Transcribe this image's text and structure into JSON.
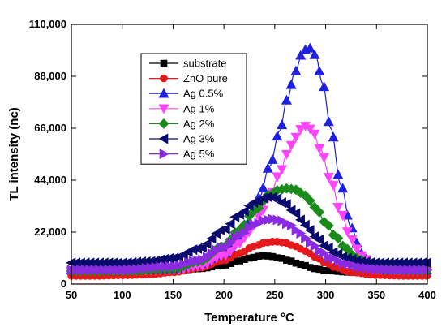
{
  "chart_data": {
    "type": "scatter",
    "xlabel": "Temperature °C",
    "ylabel": "TL intensity (nc)",
    "xlim": [
      50,
      400
    ],
    "ylim": [
      0,
      110000
    ],
    "xticks": [
      50,
      100,
      150,
      200,
      250,
      300,
      350,
      400
    ],
    "xtick_labels": [
      "50",
      "100",
      "150",
      "200",
      "250",
      "300",
      "350",
      "400"
    ],
    "yticks": [
      0,
      22000,
      44000,
      66000,
      88000,
      110000
    ],
    "ytick_labels": [
      "0",
      "22,000",
      "44,000",
      "66,000",
      "88,000",
      "110,000"
    ],
    "grid": false,
    "legend_position": "top-left",
    "series": [
      {
        "name": "substrate",
        "color": "#000000",
        "marker": "square",
        "x": [
          50,
          75,
          100,
          125,
          150,
          175,
          200,
          215,
          225,
          235,
          240,
          245,
          255,
          265,
          275,
          290,
          300,
          325,
          350,
          375,
          400
        ],
        "y": [
          4500,
          4600,
          4700,
          5000,
          5500,
          6500,
          8000,
          9800,
          11000,
          11800,
          12000,
          11800,
          11000,
          9800,
          8300,
          6500,
          5700,
          5000,
          4800,
          4700,
          4700
        ]
      },
      {
        "name": "ZnO pure",
        "color": "#e31a1c",
        "marker": "circle",
        "x": [
          50,
          75,
          100,
          125,
          150,
          175,
          200,
          215,
          230,
          240,
          250,
          260,
          270,
          280,
          290,
          300,
          310,
          325,
          350,
          375,
          400
        ],
        "y": [
          3500,
          3500,
          3700,
          4000,
          5000,
          6800,
          10000,
          13000,
          16000,
          17500,
          18000,
          17500,
          16000,
          14000,
          11500,
          9000,
          7000,
          5000,
          3800,
          3500,
          3500
        ]
      },
      {
        "name": "Ag 0.5%",
        "color": "#1f1fe0",
        "marker": "triangle-up",
        "x": [
          50,
          100,
          150,
          175,
          200,
          215,
          225,
          235,
          245,
          255,
          262,
          270,
          278,
          284,
          290,
          297,
          305,
          315,
          325,
          335,
          345,
          360,
          375,
          400
        ],
        "y": [
          6000,
          6000,
          6500,
          8500,
          13000,
          20000,
          27000,
          37000,
          50000,
          65000,
          78000,
          90000,
          99000,
          100000,
          97000,
          85000,
          66000,
          42000,
          24000,
          13000,
          8000,
          6000,
          6000,
          6000
        ]
      },
      {
        "name": "Ag 1%",
        "color": "#ff44ff",
        "marker": "triangle-down",
        "x": [
          50,
          100,
          150,
          175,
          200,
          215,
          225,
          235,
          245,
          255,
          262,
          270,
          275,
          281,
          287,
          295,
          305,
          315,
          325,
          335,
          345,
          360,
          375,
          400
        ],
        "y": [
          5500,
          5500,
          6000,
          7500,
          12000,
          17000,
          22000,
          29000,
          37000,
          47000,
          55000,
          62000,
          65500,
          67000,
          65000,
          57000,
          44000,
          30000,
          19000,
          12000,
          8500,
          6500,
          5800,
          5500
        ]
      },
      {
        "name": "Ag  2%",
        "color": "#1a8a1a",
        "marker": "diamond",
        "x": [
          50,
          100,
          150,
          175,
          200,
          215,
          230,
          245,
          255,
          262,
          270,
          280,
          290,
          300,
          310,
          320,
          330,
          345,
          360,
          375,
          400
        ],
        "y": [
          5500,
          5500,
          6500,
          9500,
          16000,
          23000,
          31000,
          38000,
          40000,
          40500,
          40000,
          37500,
          32500,
          26000,
          20000,
          15000,
          11000,
          8000,
          6500,
          6000,
          5800
        ]
      },
      {
        "name": "Ag  3%",
        "color": "#0a0a6e",
        "marker": "triangle-left",
        "x": [
          50,
          100,
          125,
          150,
          175,
          200,
          215,
          230,
          240,
          245,
          250,
          260,
          270,
          280,
          290,
          300,
          310,
          320,
          335,
          350,
          375,
          400
        ],
        "y": [
          9000,
          9000,
          9500,
          11000,
          15000,
          23000,
          29500,
          34500,
          36500,
          37000,
          36500,
          34000,
          30000,
          25000,
          20000,
          16000,
          13000,
          11000,
          9500,
          9000,
          9000,
          9000
        ]
      },
      {
        "name": "Ag  5%",
        "color": "#8a2be2",
        "marker": "triangle-right",
        "x": [
          50,
          100,
          150,
          175,
          200,
          215,
          230,
          240,
          248,
          255,
          265,
          275,
          285,
          295,
          305,
          320,
          335,
          350,
          375,
          400
        ],
        "y": [
          6000,
          6000,
          7500,
          10000,
          15500,
          20500,
          25000,
          27000,
          27500,
          27000,
          25000,
          21500,
          17500,
          14000,
          11000,
          8500,
          7000,
          6300,
          6000,
          6000
        ]
      }
    ]
  }
}
